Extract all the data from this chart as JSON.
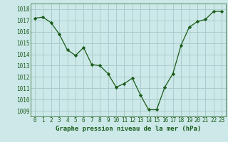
{
  "x": [
    0,
    1,
    2,
    3,
    4,
    5,
    6,
    7,
    8,
    9,
    10,
    11,
    12,
    13,
    14,
    15,
    16,
    17,
    18,
    19,
    20,
    21,
    22,
    23
  ],
  "y": [
    1017.2,
    1017.3,
    1016.8,
    1015.8,
    1014.4,
    1013.9,
    1014.6,
    1013.1,
    1013.0,
    1012.3,
    1011.1,
    1011.4,
    1011.9,
    1010.4,
    1009.1,
    1009.1,
    1011.1,
    1012.3,
    1014.8,
    1016.4,
    1016.9,
    1017.1,
    1017.8,
    1017.8
  ],
  "line_color": "#1a5c1a",
  "marker": "D",
  "marker_size": 2.2,
  "bg_color": "#cce8e8",
  "grid_color": "#aacccc",
  "xlabel": "Graphe pression niveau de la mer (hPa)",
  "xlabel_color": "#1a5c1a",
  "tick_color": "#1a5c1a",
  "ylim": [
    1008.5,
    1018.5
  ],
  "yticks": [
    1009,
    1010,
    1011,
    1012,
    1013,
    1014,
    1015,
    1016,
    1017,
    1018
  ],
  "xlim": [
    -0.5,
    23.5
  ],
  "xticks": [
    0,
    1,
    2,
    3,
    4,
    5,
    6,
    7,
    8,
    9,
    10,
    11,
    12,
    13,
    14,
    15,
    16,
    17,
    18,
    19,
    20,
    21,
    22,
    23
  ],
  "tick_fontsize": 5.5,
  "xlabel_fontsize": 6.5
}
